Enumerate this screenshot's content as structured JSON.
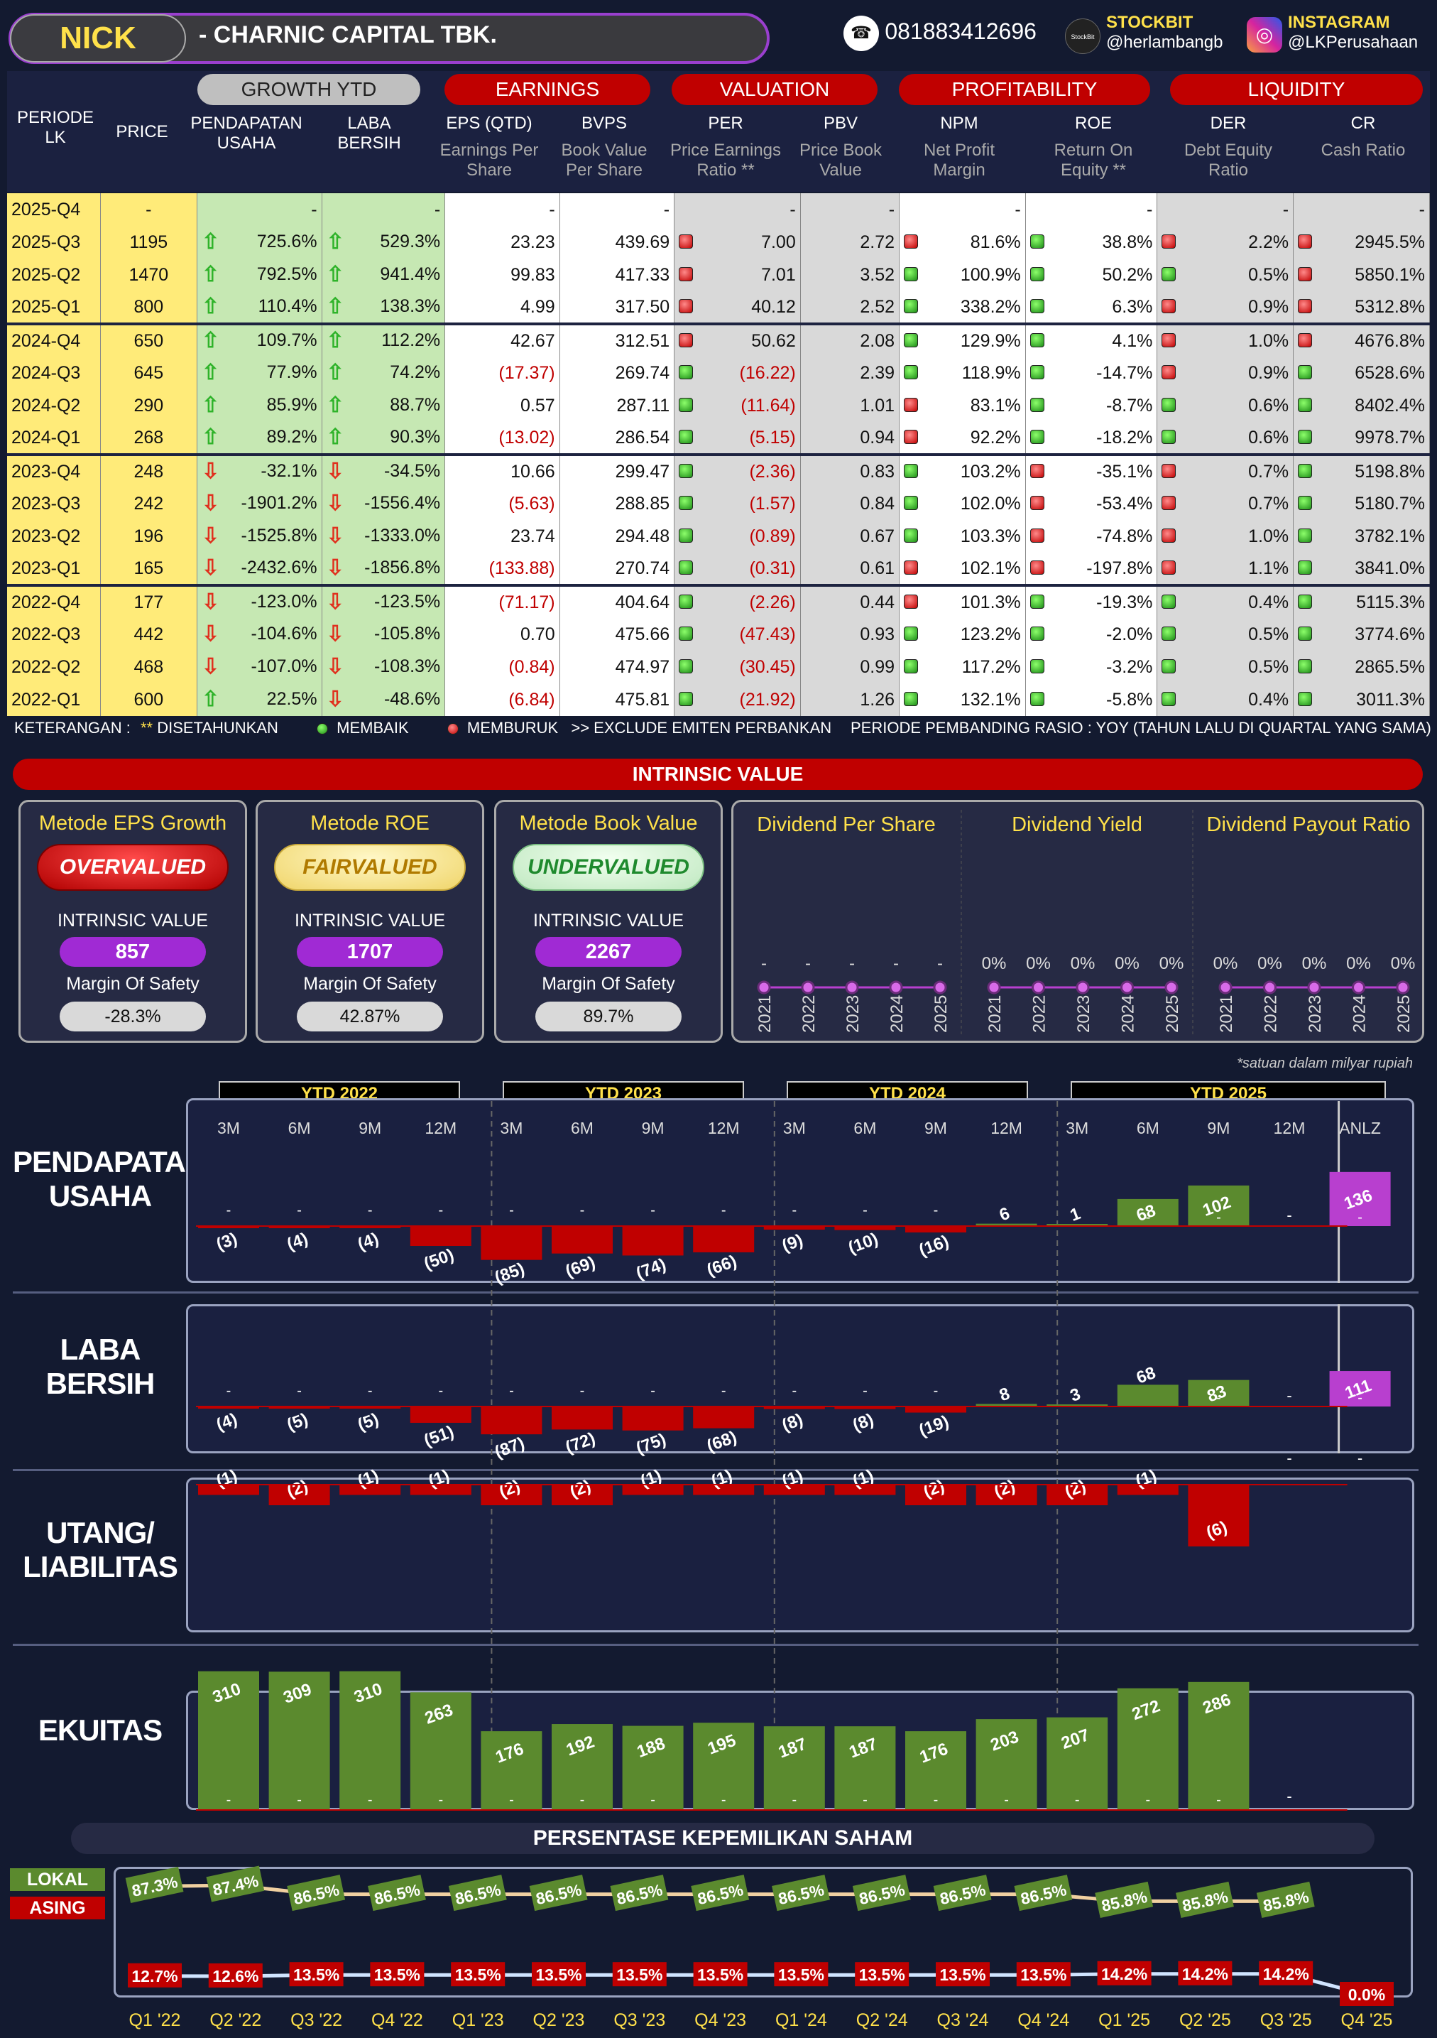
{
  "header": {
    "ticker": "NICK",
    "company": "-  CHARNIC CAPITAL TBK.",
    "phone": "081883412696",
    "stockbit_label": "STOCKBIT",
    "stockbit_handle": "@herlambangb",
    "instagram_label": "INSTAGRAM",
    "instagram_handle": "@LKPerusahaan",
    "stockbit_logo": "StockBit"
  },
  "table_headers": {
    "periode": "PERIODE LK",
    "price": "PRICE",
    "growth": "GROWTH YTD",
    "earnings": "EARNINGS",
    "valuation": "VALUATION",
    "profitability": "PROFITABILITY",
    "liquidity": "LIQUIDITY",
    "pendapatan": "PENDAPATAN USAHA",
    "laba": "LABA BERSIH",
    "eps": "EPS (QTD)",
    "eps_sub": "Earnings Per Share",
    "bvps": "BVPS",
    "bvps_sub": "Book Value Per Share",
    "per": "PER",
    "per_sub": "Price Earnings Ratio **",
    "pbv": "PBV",
    "pbv_sub": "Price Book Value",
    "npm": "NPM",
    "npm_sub": "Net Profit Margin",
    "roe": "ROE",
    "roe_sub": "Return On Equity **",
    "der": "DER",
    "der_sub": "Debt Equity Ratio",
    "cr": "CR",
    "cr_sub": "Cash Ratio"
  },
  "rows": [
    {
      "p": "2025-Q4",
      "price": "-",
      "pu": "-",
      "lb": "-",
      "eps": "-",
      "bvps": "-",
      "per": "-",
      "pbv": "-",
      "npm": "-",
      "roe": "-",
      "der": "-",
      "cr": "-",
      "pud": "",
      "lbd": "",
      "perd": "",
      "npmd": "",
      "roed": "",
      "derd": "",
      "crd": ""
    },
    {
      "p": "2025-Q3",
      "price": "1195",
      "pu": "725.6%",
      "lb": "529.3%",
      "eps": "23.23",
      "bvps": "439.69",
      "per": "7.00",
      "pbv": "2.72",
      "npm": "81.6%",
      "roe": "38.8%",
      "der": "2.2%",
      "cr": "2945.5%",
      "pud": "u",
      "lbd": "u",
      "perd": "r",
      "npmd": "r",
      "roed": "g",
      "derd": "r",
      "crd": "r"
    },
    {
      "p": "2025-Q2",
      "price": "1470",
      "pu": "792.5%",
      "lb": "941.4%",
      "eps": "99.83",
      "bvps": "417.33",
      "per": "7.01",
      "pbv": "3.52",
      "npm": "100.9%",
      "roe": "50.2%",
      "der": "0.5%",
      "cr": "5850.1%",
      "pud": "u",
      "lbd": "u",
      "perd": "r",
      "npmd": "g",
      "roed": "g",
      "derd": "g",
      "crd": "r"
    },
    {
      "p": "2025-Q1",
      "price": "800",
      "pu": "110.4%",
      "lb": "138.3%",
      "eps": "4.99",
      "bvps": "317.50",
      "per": "40.12",
      "pbv": "2.52",
      "npm": "338.2%",
      "roe": "6.3%",
      "der": "0.9%",
      "cr": "5312.8%",
      "pud": "u",
      "lbd": "u",
      "perd": "r",
      "npmd": "g",
      "roed": "g",
      "derd": "r",
      "crd": "r"
    },
    {
      "p": "2024-Q4",
      "price": "650",
      "pu": "109.7%",
      "lb": "112.2%",
      "eps": "42.67",
      "bvps": "312.51",
      "per": "50.62",
      "pbv": "2.08",
      "npm": "129.9%",
      "roe": "4.1%",
      "der": "1.0%",
      "cr": "4676.8%",
      "pud": "u",
      "lbd": "u",
      "perd": "r",
      "npmd": "g",
      "roed": "g",
      "derd": "r",
      "crd": "r"
    },
    {
      "p": "2024-Q3",
      "price": "645",
      "pu": "77.9%",
      "lb": "74.2%",
      "eps": "(17.37)",
      "bvps": "269.74",
      "per": "(16.22)",
      "pbv": "2.39",
      "npm": "118.9%",
      "roe": "-14.7%",
      "der": "0.9%",
      "cr": "6528.6%",
      "pud": "u",
      "lbd": "u",
      "perd": "g",
      "npmd": "g",
      "roed": "g",
      "derd": "r",
      "crd": "g"
    },
    {
      "p": "2024-Q2",
      "price": "290",
      "pu": "85.9%",
      "lb": "88.7%",
      "eps": "0.57",
      "bvps": "287.11",
      "per": "(11.64)",
      "pbv": "1.01",
      "npm": "83.1%",
      "roe": "-8.7%",
      "der": "0.6%",
      "cr": "8402.4%",
      "pud": "u",
      "lbd": "u",
      "perd": "g",
      "npmd": "r",
      "roed": "g",
      "derd": "g",
      "crd": "g"
    },
    {
      "p": "2024-Q1",
      "price": "268",
      "pu": "89.2%",
      "lb": "90.3%",
      "eps": "(13.02)",
      "bvps": "286.54",
      "per": "(5.15)",
      "pbv": "0.94",
      "npm": "92.2%",
      "roe": "-18.2%",
      "der": "0.6%",
      "cr": "9978.7%",
      "pud": "u",
      "lbd": "u",
      "perd": "g",
      "npmd": "r",
      "roed": "g",
      "derd": "g",
      "crd": "g"
    },
    {
      "p": "2023-Q4",
      "price": "248",
      "pu": "-32.1%",
      "lb": "-34.5%",
      "eps": "10.66",
      "bvps": "299.47",
      "per": "(2.36)",
      "pbv": "0.83",
      "npm": "103.2%",
      "roe": "-35.1%",
      "der": "0.7%",
      "cr": "5198.8%",
      "pud": "d",
      "lbd": "d",
      "perd": "g",
      "npmd": "g",
      "roed": "r",
      "derd": "r",
      "crd": "g"
    },
    {
      "p": "2023-Q3",
      "price": "242",
      "pu": "-1901.2%",
      "lb": "-1556.4%",
      "eps": "(5.63)",
      "bvps": "288.85",
      "per": "(1.57)",
      "pbv": "0.84",
      "npm": "102.0%",
      "roe": "-53.4%",
      "der": "0.7%",
      "cr": "5180.7%",
      "pud": "d",
      "lbd": "d",
      "perd": "g",
      "npmd": "g",
      "roed": "r",
      "derd": "r",
      "crd": "g"
    },
    {
      "p": "2023-Q2",
      "price": "196",
      "pu": "-1525.8%",
      "lb": "-1333.0%",
      "eps": "23.74",
      "bvps": "294.48",
      "per": "(0.89)",
      "pbv": "0.67",
      "npm": "103.3%",
      "roe": "-74.8%",
      "der": "1.0%",
      "cr": "3782.1%",
      "pud": "d",
      "lbd": "d",
      "perd": "g",
      "npmd": "g",
      "roed": "r",
      "derd": "r",
      "crd": "g"
    },
    {
      "p": "2023-Q1",
      "price": "165",
      "pu": "-2432.6%",
      "lb": "-1856.8%",
      "eps": "(133.88)",
      "bvps": "270.74",
      "per": "(0.31)",
      "pbv": "0.61",
      "npm": "102.1%",
      "roe": "-197.8%",
      "der": "1.1%",
      "cr": "3841.0%",
      "pud": "d",
      "lbd": "d",
      "perd": "g",
      "npmd": "r",
      "roed": "r",
      "derd": "r",
      "crd": "g"
    },
    {
      "p": "2022-Q4",
      "price": "177",
      "pu": "-123.0%",
      "lb": "-123.5%",
      "eps": "(71.17)",
      "bvps": "404.64",
      "per": "(2.26)",
      "pbv": "0.44",
      "npm": "101.3%",
      "roe": "-19.3%",
      "der": "0.4%",
      "cr": "5115.3%",
      "pud": "d",
      "lbd": "d",
      "perd": "g",
      "npmd": "r",
      "roed": "g",
      "derd": "g",
      "crd": "g"
    },
    {
      "p": "2022-Q3",
      "price": "442",
      "pu": "-104.6%",
      "lb": "-105.8%",
      "eps": "0.70",
      "bvps": "475.66",
      "per": "(47.43)",
      "pbv": "0.93",
      "npm": "123.2%",
      "roe": "-2.0%",
      "der": "0.5%",
      "cr": "3774.6%",
      "pud": "d",
      "lbd": "d",
      "perd": "g",
      "npmd": "g",
      "roed": "g",
      "derd": "g",
      "crd": "g"
    },
    {
      "p": "2022-Q2",
      "price": "468",
      "pu": "-107.0%",
      "lb": "-108.3%",
      "eps": "(0.84)",
      "bvps": "474.97",
      "per": "(30.45)",
      "pbv": "0.99",
      "npm": "117.2%",
      "roe": "-3.2%",
      "der": "0.5%",
      "cr": "2865.5%",
      "pud": "d",
      "lbd": "d",
      "perd": "g",
      "npmd": "g",
      "roed": "g",
      "derd": "g",
      "crd": "g"
    },
    {
      "p": "2022-Q1",
      "price": "600",
      "pu": "22.5%",
      "lb": "-48.6%",
      "eps": "(6.84)",
      "bvps": "475.81",
      "per": "(21.92)",
      "pbv": "1.26",
      "npm": "132.1%",
      "roe": "-5.8%",
      "der": "0.4%",
      "cr": "3011.3%",
      "pud": "u",
      "lbd": "d",
      "perd": "g",
      "npmd": "g",
      "roed": "g",
      "derd": "g",
      "crd": "g"
    }
  ],
  "notes": {
    "keterangan": "KETERANGAN :",
    "star": "**",
    "disetahunkan": "DISETAHUNKAN",
    "membaik": "MEMBAIK",
    "memburuk": "MEMBURUK",
    "exclude": ">> EXCLUDE EMITEN PERBANKAN",
    "pembanding": "PERIODE PEMBANDING RASIO : YOY (TAHUN LALU DI QUARTAL YANG SAMA)",
    "satuan": "*satuan dalam milyar rupiah"
  },
  "intrinsic": {
    "title": "INTRINSIC VALUE",
    "iv_label": "INTRINSIC VALUE",
    "mos_label": "Margin Of Safety",
    "methods": [
      {
        "name": "Metode EPS Growth",
        "status": "OVERVALUED",
        "value": "857",
        "mos": "-28.3%"
      },
      {
        "name": "Metode ROE",
        "status": "FAIRVALUED",
        "value": "1707",
        "mos": "42.87%"
      },
      {
        "name": "Metode Book Value",
        "status": "UNDERVALUED",
        "value": "2267",
        "mos": "89.7%"
      }
    ],
    "dividend": [
      {
        "name": "Dividend Per Share",
        "vals": [
          "-",
          "-",
          "-",
          "-",
          "-"
        ]
      },
      {
        "name": "Dividend Yield",
        "vals": [
          "0%",
          "0%",
          "0%",
          "0%",
          "0%"
        ]
      },
      {
        "name": "Dividend Payout Ratio",
        "vals": [
          "0%",
          "0%",
          "0%",
          "0%",
          "0%"
        ]
      }
    ],
    "years": [
      "2021",
      "2022",
      "2023",
      "2024",
      "2025"
    ]
  },
  "colors": {
    "green": "#5b8a2e",
    "red": "#c00000",
    "magenta": "#b83fcf",
    "bg": "#131a30"
  },
  "chart_data": [
    {
      "type": "bar",
      "title": "PENDAPATAN USAHA",
      "categories": [
        "3M",
        "6M",
        "9M",
        "12M",
        "3M",
        "6M",
        "9M",
        "12M",
        "3M",
        "6M",
        "9M",
        "12M",
        "3M",
        "6M",
        "9M",
        "12M",
        "ANLZ"
      ],
      "groups": [
        "YTD 2022",
        "YTD 2023",
        "YTD 2024",
        "YTD 2025"
      ],
      "values": [
        -3,
        -4,
        -4,
        -50,
        -85,
        -69,
        -74,
        -66,
        -9,
        -10,
        -16,
        6,
        1,
        68,
        102,
        null,
        136
      ],
      "labels": [
        "(3)",
        "(4)",
        "(4)",
        "(50)",
        "(85)",
        "(69)",
        "(74)",
        "(66)",
        "(9)",
        "(10)",
        "(16)",
        "6",
        "1",
        "68",
        "102",
        "-",
        "136"
      ]
    },
    {
      "type": "bar",
      "title": "LABA BERSIH",
      "values": [
        -4,
        -5,
        -5,
        -51,
        -87,
        -72,
        -75,
        -68,
        -8,
        -8,
        -19,
        8,
        3,
        68,
        83,
        null,
        111
      ],
      "labels": [
        "(4)",
        "(5)",
        "(5)",
        "(51)",
        "(87)",
        "(72)",
        "(75)",
        "(68)",
        "(8)",
        "(8)",
        "(19)",
        "8",
        "3",
        "68",
        "83",
        "-",
        "111"
      ]
    },
    {
      "type": "bar",
      "title": "UTANG/ LIABILITAS",
      "values": [
        -1,
        -2,
        -1,
        -1,
        -2,
        -2,
        -1,
        -1,
        -1,
        -1,
        -2,
        -2,
        -2,
        -1,
        -6,
        null,
        null
      ],
      "labels": [
        "(1)",
        "(2)",
        "(1)",
        "(1)",
        "(2)",
        "(2)",
        "(1)",
        "(1)",
        "(1)",
        "(1)",
        "(2)",
        "(2)",
        "(2)",
        "(1)",
        "(6)",
        "-",
        "-"
      ]
    },
    {
      "type": "bar",
      "title": "EKUITAS",
      "values": [
        310,
        309,
        310,
        263,
        176,
        192,
        188,
        195,
        187,
        187,
        176,
        203,
        207,
        272,
        286,
        null
      ],
      "labels": [
        "310",
        "309",
        "310",
        "263",
        "176",
        "192",
        "188",
        "195",
        "187",
        "187",
        "176",
        "203",
        "207",
        "272",
        "286",
        "-"
      ]
    },
    {
      "type": "line",
      "title": "PERSENTASE KEPEMILIKAN SAHAM",
      "categories": [
        "Q1 '22",
        "Q2 '22",
        "Q3 '22",
        "Q4 '22",
        "Q1 '23",
        "Q2 '23",
        "Q3 '23",
        "Q4 '23",
        "Q1 '24",
        "Q2 '24",
        "Q3 '24",
        "Q4 '24",
        "Q1 '25",
        "Q2 '25",
        "Q3 '25",
        "Q4 '25"
      ],
      "series": [
        {
          "name": "LOKAL",
          "values": [
            87.3,
            87.4,
            86.5,
            86.5,
            86.5,
            86.5,
            86.5,
            86.5,
            86.5,
            86.5,
            86.5,
            86.5,
            85.8,
            85.8,
            85.8,
            null
          ]
        },
        {
          "name": "ASING",
          "values": [
            12.7,
            12.6,
            13.5,
            13.5,
            13.5,
            13.5,
            13.5,
            13.5,
            13.5,
            13.5,
            13.5,
            13.5,
            14.2,
            14.2,
            14.2,
            0.0
          ]
        }
      ]
    }
  ],
  "chart_labels": {
    "pendapatan": "PENDAPATAN USAHA",
    "laba": "LABA BERSIH",
    "utang": "UTANG/ LIABILITAS",
    "ekuitas": "EKUITAS",
    "kepemilikan": "PERSENTASE KEPEMILIKAN SAHAM",
    "lokal": "LOKAL",
    "asing": "ASING",
    "ytd2022": "YTD 2022",
    "ytd2023": "YTD 2023",
    "ytd2024": "YTD 2024",
    "ytd2025": "YTD 2025"
  }
}
